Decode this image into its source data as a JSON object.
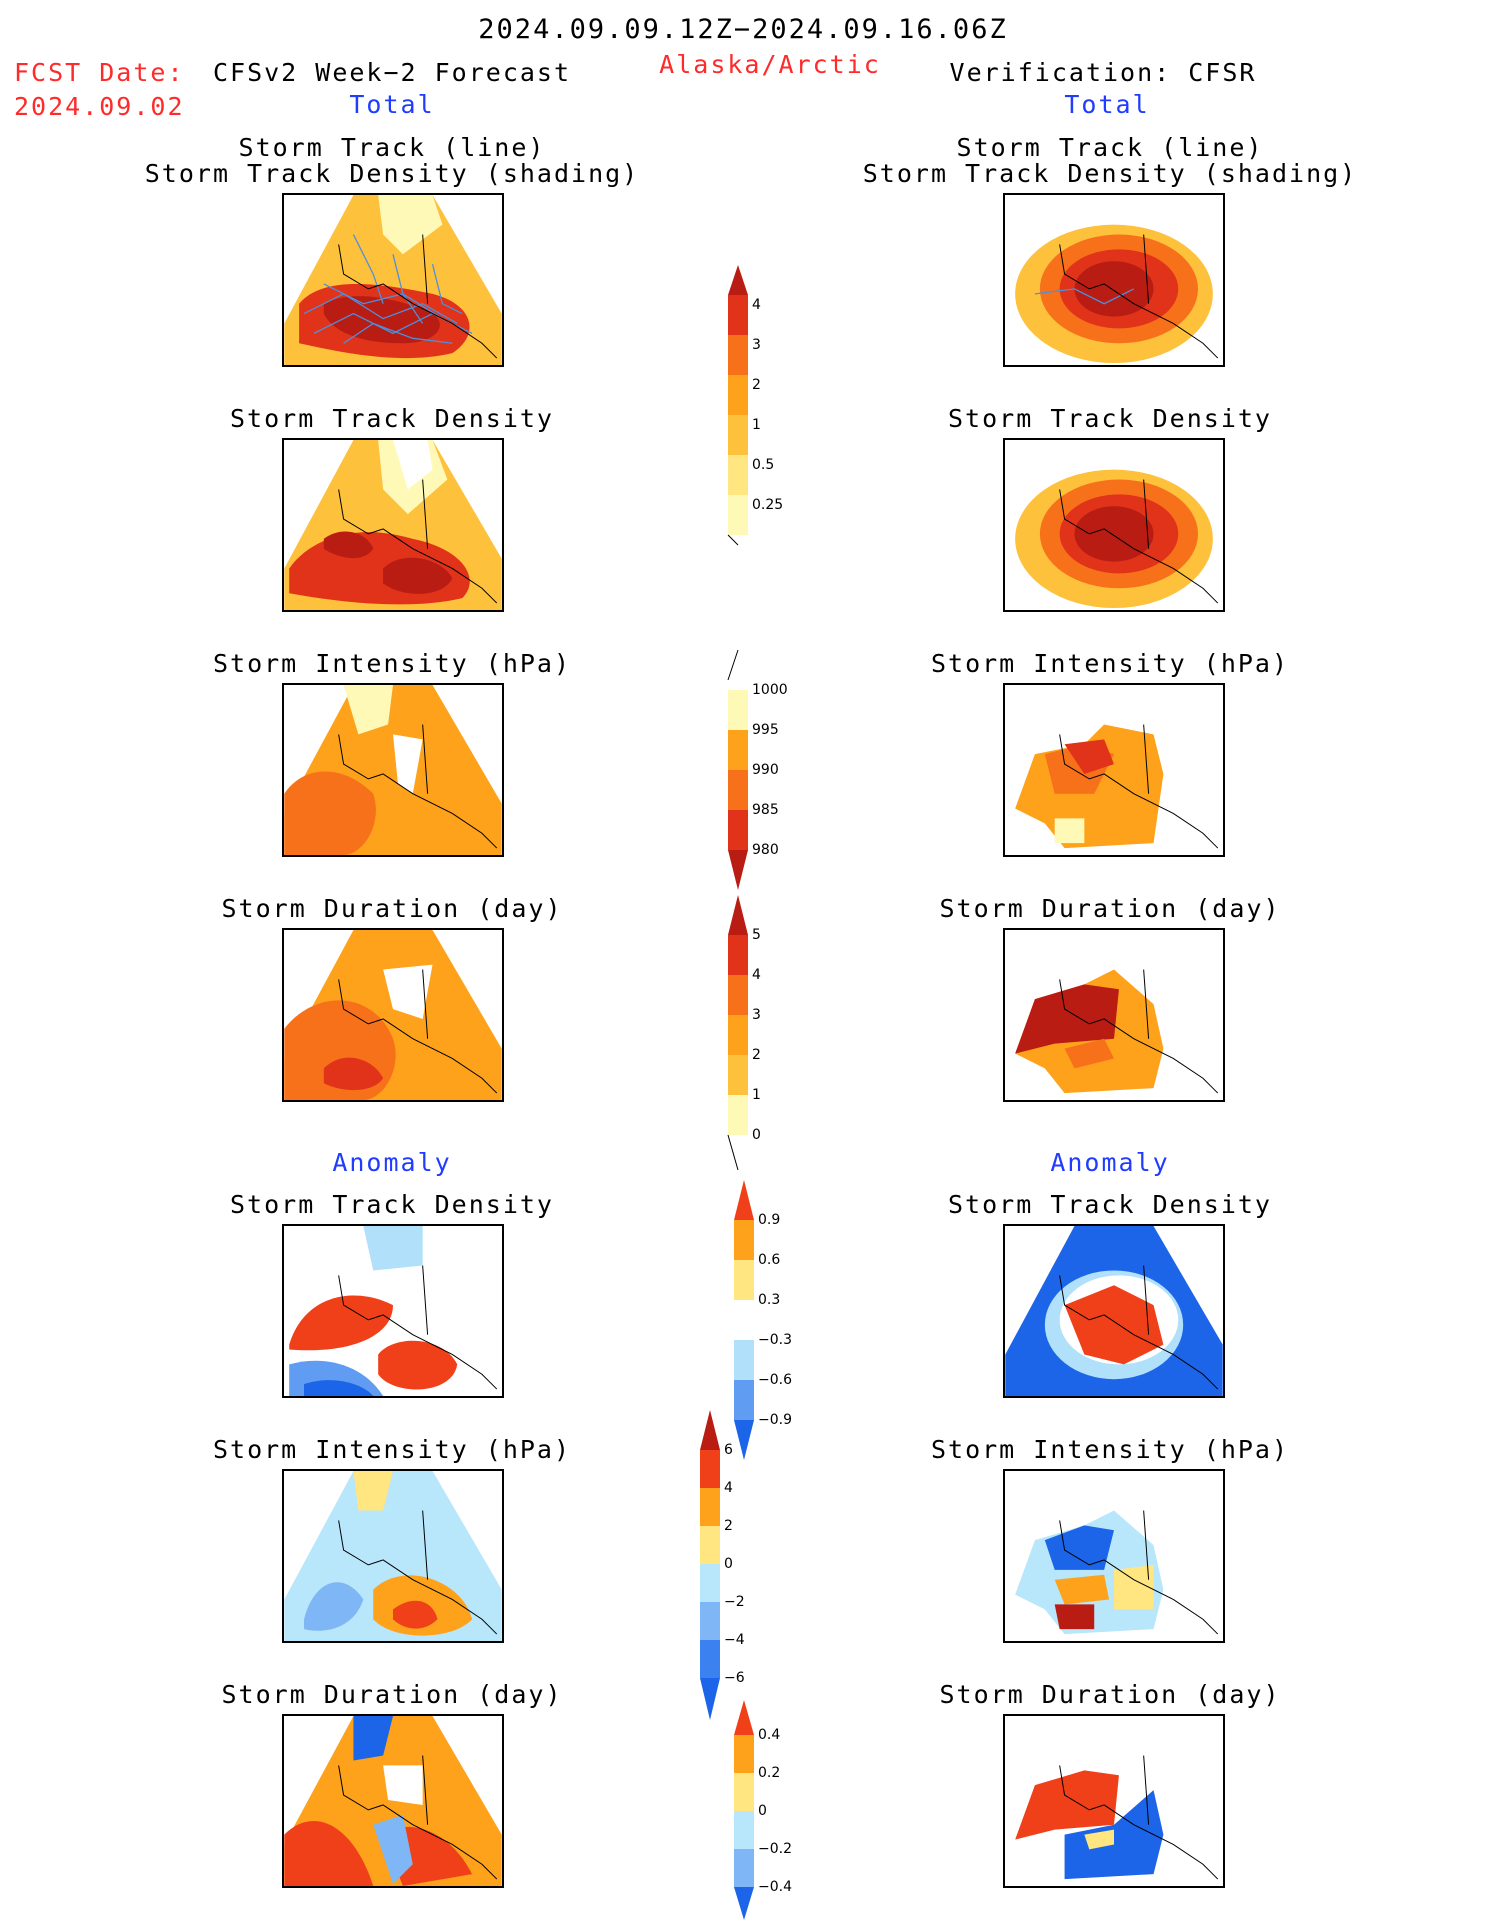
{
  "header": {
    "period": "2024.09.09.12Z−2024.09.16.06Z",
    "region": "Alaska/Arctic",
    "fcst_label": "FCST Date:",
    "fcst_date": "2024.09.02",
    "left_title": "CFSv2 Week−2 Forecast",
    "right_title": "Verification: CFSR",
    "total": "Total",
    "anomaly": "Anomaly"
  },
  "panel_titles": {
    "track_line": "Storm Track (line)",
    "track_shading": "Storm Track Density (shading)",
    "density": "Storm Track Density",
    "intensity": "Storm Intensity (hPa)",
    "duration": "Storm Duration (day)"
  },
  "colorbars": {
    "density_total": {
      "ticks": [
        "0.25",
        "0.5",
        "1",
        "2",
        "3",
        "4"
      ],
      "colors": [
        "#fff9b8",
        "#ffe680",
        "#fdc13c",
        "#fda21a",
        "#f7711b",
        "#e0331a",
        "#b81c12"
      ]
    },
    "intensity_total": {
      "ticks": [
        "1000",
        "995",
        "990",
        "985",
        "980"
      ],
      "colors": [
        "#fff9b8",
        "#ffe680",
        "#fda21a",
        "#f7711b",
        "#e0331a",
        "#b81c12"
      ]
    },
    "duration_total": {
      "ticks": [
        "0",
        "1",
        "2",
        "3",
        "4",
        "5"
      ],
      "colors": [
        "#fff9b8",
        "#ffe680",
        "#fdc13c",
        "#fda21a",
        "#f7711b",
        "#e0331a",
        "#b81c12"
      ]
    },
    "density_anom": {
      "ticks": [
        "−0.9",
        "−0.6",
        "−0.3",
        "0.3",
        "0.6",
        "0.9"
      ],
      "colors": [
        "#1c64e8",
        "#5f9cf2",
        "#b0e0fa",
        "#ffffff",
        "#ffe680",
        "#fda21a",
        "#f0401a"
      ]
    },
    "intensity_anom": {
      "ticks": [
        "−6",
        "−4",
        "−2",
        "0",
        "2",
        "4",
        "6"
      ],
      "colors": [
        "#1c64e8",
        "#3b82f0",
        "#7fb6f6",
        "#b8e6fb",
        "#ffe680",
        "#fda21a",
        "#f0401a",
        "#b81c12"
      ]
    },
    "duration_anom": {
      "ticks": [
        "−0.4",
        "−0.2",
        "0",
        "0.2",
        "0.4"
      ],
      "colors": [
        "#1c64e8",
        "#7fb6f6",
        "#b8e6fb",
        "#ffe680",
        "#fda21a",
        "#f0401a"
      ]
    }
  }
}
